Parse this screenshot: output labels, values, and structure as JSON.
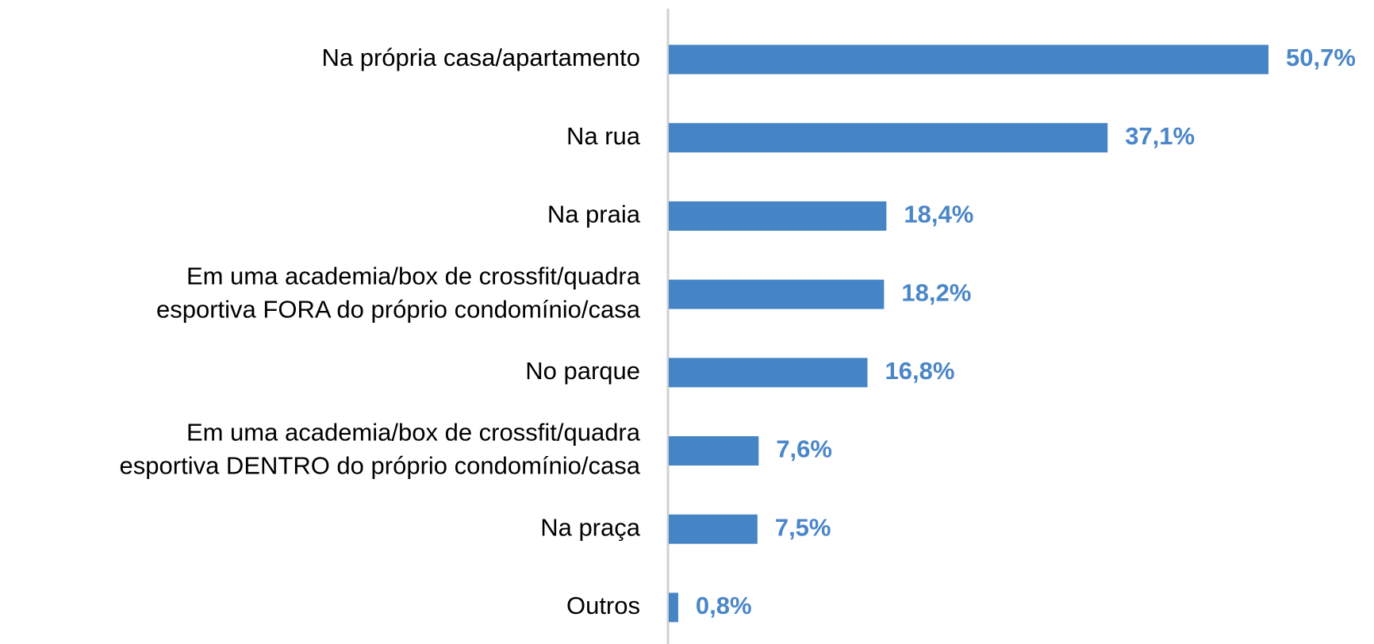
{
  "chart_data": {
    "type": "hbar",
    "categories": [
      [
        "Na própria casa/apartamento"
      ],
      [
        "Na rua"
      ],
      [
        "Na praia"
      ],
      [
        "Em uma academia/box de crossfit/quadra",
        "esportiva FORA do próprio condomínio/casa"
      ],
      [
        "No parque"
      ],
      [
        "Em uma academia/box de crossfit/quadra",
        "esportiva DENTRO do próprio condomínio/casa"
      ],
      [
        "Na praça"
      ],
      [
        "Outros"
      ]
    ],
    "values": [
      50.7,
      37.1,
      18.4,
      18.2,
      16.8,
      7.6,
      7.5,
      0.8
    ],
    "value_labels": [
      "50,7%",
      "37,1%",
      "18,4%",
      "18,2%",
      "16,8%",
      "7,6%",
      "7,5%",
      "0,8%"
    ],
    "color": "#4585c6",
    "label_color": "#4a86c8"
  }
}
